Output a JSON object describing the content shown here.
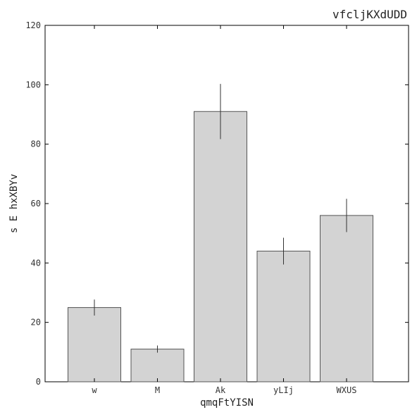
{
  "chart_data": {
    "type": "bar",
    "title": "vfcljKXdUDD",
    "xlabel": "qmqFtYISN",
    "ylabel": "s E hxXBYv",
    "categories": [
      "w",
      "M",
      "Ak",
      "yLIj",
      "WXUS"
    ],
    "values": [
      25,
      11,
      91,
      44,
      56
    ],
    "errors": [
      2.7,
      1.2,
      9.3,
      4.5,
      5.6
    ],
    "ylim": [
      0,
      120
    ],
    "yticks": [
      0,
      20,
      40,
      60,
      80,
      100,
      120
    ],
    "grid": false,
    "legend": "none",
    "colors": {
      "bar_fill": "#d3d3d3",
      "bar_edge": "#555555",
      "error_bar": "#333333",
      "axis": "#000000"
    }
  }
}
